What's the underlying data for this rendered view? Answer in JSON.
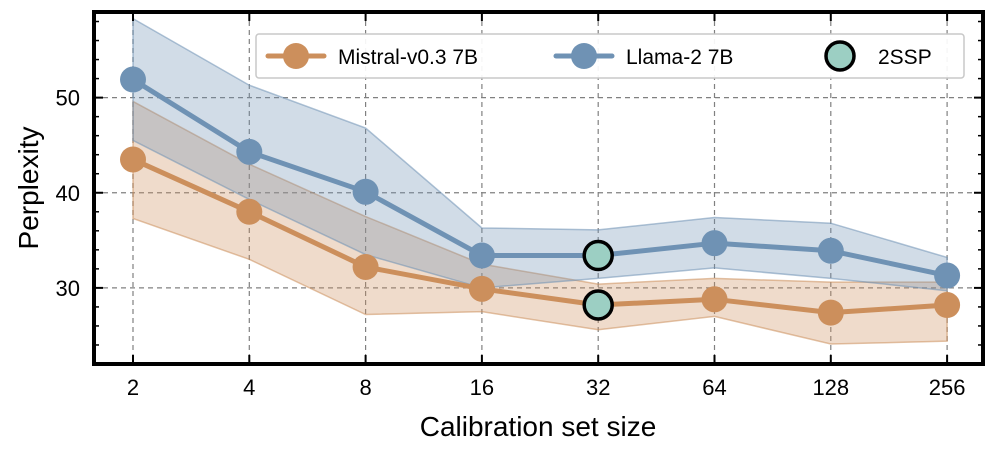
{
  "chart_data": {
    "type": "line",
    "xlabel": "Calibration set size",
    "ylabel": "Perplexity",
    "x": [
      2,
      4,
      8,
      16,
      32,
      64,
      128,
      256
    ],
    "x_tick_labels": [
      "2",
      "4",
      "8",
      "16",
      "32",
      "64",
      "128",
      "256"
    ],
    "x_scale": "log2",
    "ylim": [
      22,
      59
    ],
    "y_ticks": [
      30,
      40,
      50
    ],
    "y_tick_labels": [
      "30",
      "40",
      "50"
    ],
    "grid": true,
    "legend_position": "top-right",
    "series": [
      {
        "name": "Mistral-v0.3 7B",
        "color": "#CC8F5C",
        "values": [
          43.5,
          38.0,
          32.2,
          29.9,
          28.2,
          28.8,
          27.4,
          28.2
        ],
        "band_low": [
          37.3,
          33.0,
          27.2,
          27.5,
          25.6,
          27.0,
          24.1,
          24.4
        ],
        "band_high": [
          49.6,
          43.0,
          37.5,
          32.5,
          30.4,
          31.0,
          30.6,
          30.6
        ]
      },
      {
        "name": "Llama-2 7B",
        "color": "#6F92B4",
        "values": [
          51.9,
          44.3,
          40.1,
          33.4,
          33.4,
          34.7,
          33.9,
          31.3
        ],
        "band_low": [
          45.5,
          39.3,
          33.5,
          30.0,
          31.0,
          32.1,
          31.0,
          29.7
        ],
        "band_high": [
          58.3,
          51.3,
          46.8,
          36.3,
          36.1,
          37.4,
          36.8,
          33.2
        ]
      }
    ],
    "highlight": {
      "name": "2SSP",
      "color": "#9CCFC3",
      "points": [
        {
          "x": 32,
          "y": 33.4,
          "series": "Llama-2 7B"
        },
        {
          "x": 32,
          "y": 28.2,
          "series": "Mistral-v0.3 7B"
        }
      ]
    },
    "legend": [
      "Mistral-v0.3 7B",
      "Llama-2 7B",
      "2SSP"
    ]
  }
}
